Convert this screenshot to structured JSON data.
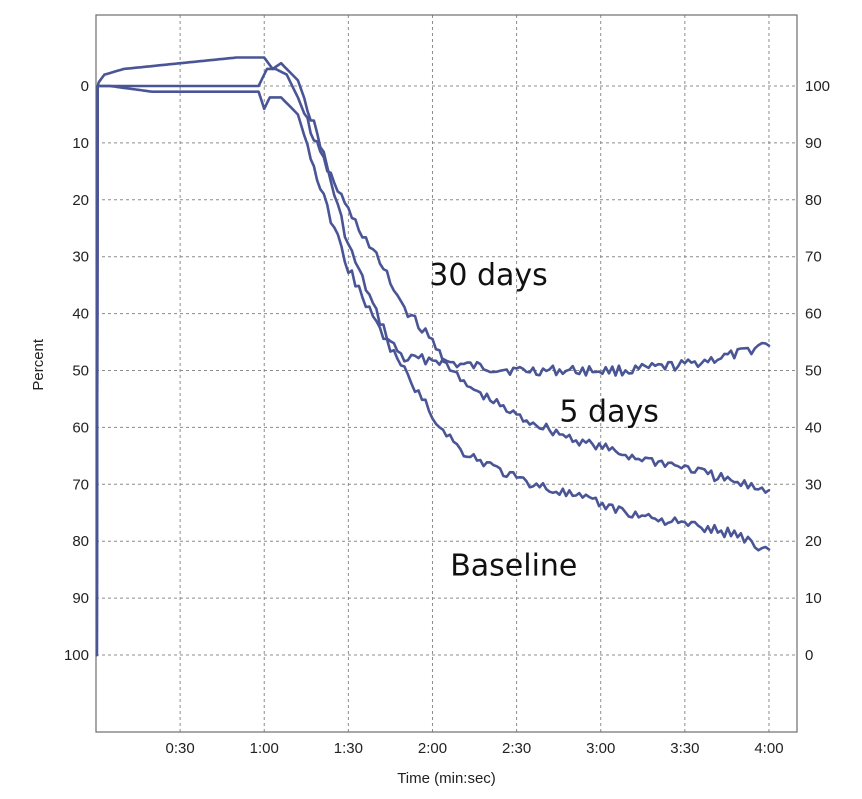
{
  "chart_data": {
    "type": "line",
    "xlabel": "Time (min:sec)",
    "ylabel": "Percent",
    "xlim": [
      0,
      250
    ],
    "ylim_left": [
      0,
      112
    ],
    "left_axis_inverted": true,
    "ylim_right": [
      -12,
      100
    ],
    "grid": true,
    "x_ticks": [
      {
        "v": 30,
        "label": "0:30"
      },
      {
        "v": 60,
        "label": "1:00"
      },
      {
        "v": 90,
        "label": "1:30"
      },
      {
        "v": 120,
        "label": "2:00"
      },
      {
        "v": 150,
        "label": "2:30"
      },
      {
        "v": 180,
        "label": "3:00"
      },
      {
        "v": 210,
        "label": "3:30"
      },
      {
        "v": 240,
        "label": "4:00"
      }
    ],
    "left_ticks": [
      "0",
      "10",
      "20",
      "30",
      "40",
      "50",
      "60",
      "70",
      "80",
      "90",
      "100"
    ],
    "right_ticks": [
      "100",
      "90",
      "80",
      "70",
      "60",
      "50",
      "40",
      "30",
      "20",
      "10",
      "0"
    ],
    "line_color": "#4a5596",
    "series": [
      {
        "name": "30 days",
        "x": [
          0,
          3,
          10,
          30,
          50,
          60,
          63,
          66,
          72,
          80,
          90,
          100,
          105,
          110,
          115,
          120,
          130,
          150,
          170,
          190,
          210,
          230,
          240
        ],
        "y": [
          0,
          -2,
          -3,
          -4,
          -5,
          -5,
          -3,
          -4,
          -1,
          10,
          28,
          40,
          45,
          48,
          48,
          48,
          49,
          50,
          50,
          50,
          49,
          47,
          45
        ]
      },
      {
        "name": "5 days",
        "x": [
          0,
          5,
          20,
          40,
          58,
          61,
          64,
          68,
          72,
          80,
          90,
          100,
          110,
          120,
          130,
          150,
          170,
          190,
          210,
          230,
          240
        ],
        "y": [
          0,
          0,
          0,
          0,
          0,
          -3,
          -3,
          -2,
          2,
          12,
          22,
          30,
          39,
          45,
          52,
          58,
          62,
          65,
          67,
          70,
          71
        ]
      },
      {
        "name": "Baseline",
        "x": [
          0,
          5,
          20,
          40,
          58,
          60,
          62,
          66,
          72,
          80,
          90,
          100,
          110,
          120,
          130,
          150,
          170,
          190,
          210,
          230,
          240
        ],
        "y": [
          0,
          0,
          1,
          1,
          1,
          4,
          2,
          2,
          5,
          18,
          32,
          42,
          50,
          58,
          64,
          69,
          72,
          75,
          77,
          79,
          82
        ]
      }
    ],
    "annotations": [
      {
        "text": "30 days",
        "x": 140,
        "y": 35
      },
      {
        "text": "5 days",
        "x": 183,
        "y": 59
      },
      {
        "text": "Baseline",
        "x": 149,
        "y": 86
      }
    ]
  }
}
